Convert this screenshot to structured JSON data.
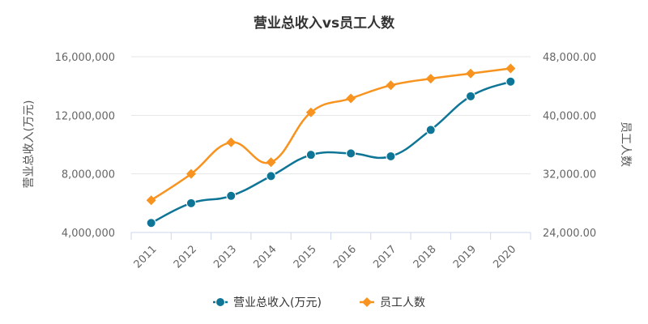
{
  "chart_data": {
    "type": "line",
    "title": "营业总收入vs员工人数",
    "categories": [
      "2011",
      "2012",
      "2013",
      "2014",
      "2015",
      "2016",
      "2017",
      "2018",
      "2019",
      "2020"
    ],
    "series": [
      {
        "name": "营业总收入(万元)",
        "axis": "left",
        "color": "#0e7597",
        "marker": "circle",
        "values": [
          4650000,
          6000000,
          6500000,
          7850000,
          9300000,
          9400000,
          9200000,
          11000000,
          13300000,
          14300000
        ]
      },
      {
        "name": "员工人数",
        "axis": "right",
        "color": "#f7931e",
        "marker": "diamond",
        "values": [
          28400,
          32000,
          36300,
          33600,
          40400,
          42300,
          44100,
          45000,
          45700,
          46400
        ]
      }
    ],
    "y_left": {
      "label": "营业总收入(万元)",
      "ylim": [
        4000000,
        16000000
      ],
      "ticks": [
        "4,000,000",
        "8,000,000",
        "12,000,000",
        "16,000,000"
      ],
      "tick_values": [
        4000000,
        8000000,
        12000000,
        16000000
      ]
    },
    "y_right": {
      "label": "员工人数",
      "ylim": [
        24000,
        48000
      ],
      "ticks": [
        "24,000.00",
        "32,000.00",
        "40,000.00",
        "48,000.00"
      ],
      "tick_values": [
        24000,
        32000,
        40000,
        48000
      ]
    },
    "grid": true,
    "legend": "bottom-center"
  }
}
